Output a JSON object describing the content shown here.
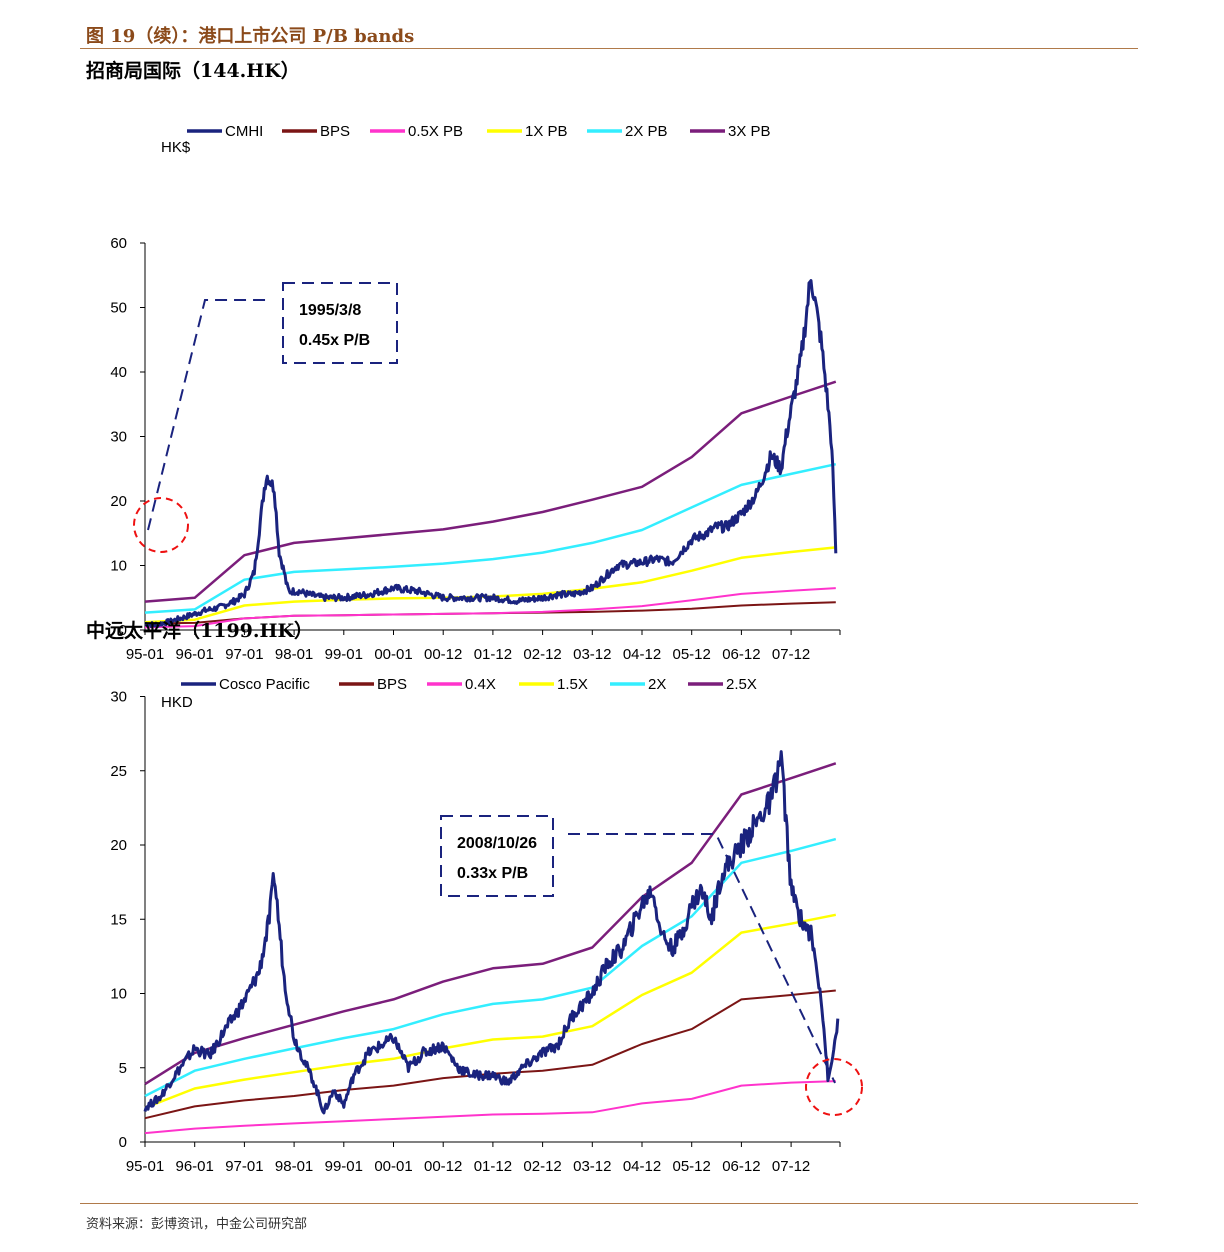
{
  "figure_title": "图 19（续）：港口上市公司 P/B bands",
  "source": "资料来源：彭博资讯，中金公司研究部",
  "chart_data": [
    {
      "type": "line",
      "title": "招商局国际（144.HK）",
      "ylabel": "HK$",
      "ylim": [
        0,
        60
      ],
      "yticks": [
        "0",
        "10",
        "20",
        "30",
        "40",
        "50",
        "60"
      ],
      "categories": [
        "95-01",
        "96-01",
        "97-01",
        "98-01",
        "99-01",
        "00-01",
        "00-12",
        "01-12",
        "02-12",
        "03-12",
        "04-12",
        "05-12",
        "06-12",
        "07-12"
      ],
      "legend_position": "top",
      "annotation": {
        "lines": [
          "1995/3/8",
          "0.45x P/B"
        ]
      },
      "series": [
        {
          "name": "CMHI",
          "color": "#1a237e",
          "width": 3,
          "noise": 1,
          "x": [
            0,
            0.2,
            0.5,
            0.8,
            1,
            1.2,
            1.5,
            1.8,
            2,
            2.2,
            2.4,
            2.45,
            2.6,
            2.7,
            2.8,
            2.85,
            2.9,
            3.0,
            3.1,
            3.3,
            3.6,
            4,
            4.5,
            5,
            5.5,
            6,
            6.5,
            7,
            7.5,
            8,
            8.3,
            8.6,
            9,
            9.5,
            10,
            10.3,
            10.6,
            11,
            11.3,
            11.5,
            11.7,
            12,
            12.3,
            12.6,
            12.8,
            12.9,
            13,
            13.2,
            13.4,
            13.6,
            13.7,
            13.8,
            13.85,
            13.9
          ],
          "y": [
            1,
            0.8,
            1.3,
            2,
            2.5,
            3,
            3.5,
            4.5,
            5.5,
            9,
            22,
            24,
            22,
            12,
            9,
            7,
            6,
            6,
            6,
            5.5,
            5,
            5,
            5.5,
            6.5,
            6,
            5,
            5,
            5,
            4.5,
            5,
            5.5,
            5.5,
            6.5,
            10,
            10.5,
            11,
            10.5,
            14,
            15,
            16,
            16,
            18,
            21,
            27,
            25,
            30,
            34,
            42,
            55,
            45,
            38,
            30,
            23,
            12
          ]
        },
        {
          "name": "BPS",
          "color": "#7b1515",
          "width": 2,
          "noise": 0,
          "x": [
            0,
            1,
            2,
            3,
            4,
            5,
            6,
            7,
            8,
            9,
            10,
            11,
            12,
            13,
            13.9
          ],
          "y": [
            1,
            1.1,
            1.8,
            2.2,
            2.3,
            2.4,
            2.5,
            2.6,
            2.7,
            2.8,
            3.0,
            3.3,
            3.8,
            4.1,
            4.3
          ]
        },
        {
          "name": "0.5X PB",
          "color": "#ff33cc",
          "width": 2,
          "noise": 0,
          "x": [
            0,
            1,
            2,
            3,
            4,
            5,
            6,
            7,
            8,
            9,
            10,
            11,
            12,
            13,
            13.9
          ],
          "y": [
            0.4,
            0.6,
            1.8,
            2.2,
            2.3,
            2.4,
            2.5,
            2.6,
            2.8,
            3.2,
            3.7,
            4.6,
            5.6,
            6.1,
            6.5
          ]
        },
        {
          "name": "1X PB",
          "color": "#ffff00",
          "width": 2.5,
          "noise": 0,
          "x": [
            0,
            1,
            2,
            3,
            4,
            5,
            6,
            7,
            8,
            9,
            10,
            11,
            12,
            13,
            13.9
          ],
          "y": [
            1.2,
            1.6,
            3.8,
            4.4,
            4.7,
            4.9,
            5.0,
            5.2,
            5.6,
            6.4,
            7.4,
            9.2,
            11.2,
            12.1,
            12.8
          ]
        },
        {
          "name": "2X PB",
          "color": "#33eeff",
          "width": 2.5,
          "noise": 0,
          "x": [
            0,
            1,
            2,
            3,
            4,
            5,
            6,
            7,
            8,
            9,
            10,
            11,
            12,
            13,
            13.9
          ],
          "y": [
            2.7,
            3.2,
            7.8,
            9.0,
            9.4,
            9.8,
            10.3,
            11.0,
            12.0,
            13.5,
            15.5,
            19.0,
            22.5,
            24.2,
            25.7
          ]
        },
        {
          "name": "3X PB",
          "color": "#7b1e7b",
          "width": 2.5,
          "noise": 0,
          "x": [
            0,
            1,
            2,
            3,
            4,
            5,
            6,
            7,
            8,
            9,
            10,
            11,
            12,
            13,
            13.9
          ],
          "y": [
            4.4,
            5.0,
            11.6,
            13.5,
            14.2,
            14.9,
            15.6,
            16.8,
            18.3,
            20.2,
            22.2,
            26.8,
            33.6,
            36.2,
            38.5
          ]
        }
      ]
    },
    {
      "type": "line",
      "title": "中远太平洋（1199.HK）",
      "ylabel": "HKD",
      "ylim": [
        0,
        30
      ],
      "yticks": [
        "0",
        "5",
        "10",
        "15",
        "20",
        "25",
        "30"
      ],
      "categories": [
        "95-01",
        "96-01",
        "97-01",
        "98-01",
        "99-01",
        "00-01",
        "00-12",
        "01-12",
        "02-12",
        "03-12",
        "04-12",
        "05-12",
        "06-12",
        "07-12"
      ],
      "legend_position": "top",
      "annotation": {
        "lines": [
          "2008/10/26",
          "0.33x P/B"
        ]
      },
      "series": [
        {
          "name": "Cosco Pacific",
          "color": "#1a237e",
          "width": 3,
          "noise": 1,
          "x": [
            0,
            0.3,
            0.6,
            1,
            1.3,
            1.6,
            2,
            2.3,
            2.5,
            2.6,
            2.8,
            3,
            3.2,
            3.4,
            3.6,
            3.8,
            4,
            4.2,
            4.5,
            5,
            5.3,
            5.6,
            6,
            6.3,
            6.6,
            7,
            7.3,
            7.6,
            8,
            8.3,
            8.6,
            9,
            9.3,
            9.6,
            10,
            10.2,
            10.4,
            10.6,
            10.8,
            11,
            11.2,
            11.4,
            11.6,
            11.8,
            12,
            12.2,
            12.4,
            12.6,
            12.8,
            13,
            13.2,
            13.4,
            13.6,
            13.75,
            13.85,
            13.95
          ],
          "y": [
            2.3,
            3.0,
            4.5,
            6.3,
            5.8,
            7.5,
            9.5,
            11.5,
            15,
            18,
            11,
            7,
            5.5,
            4,
            2,
            3.5,
            2.5,
            4.5,
            6,
            7,
            5,
            6,
            6.5,
            5,
            4.5,
            4.5,
            4,
            5,
            6,
            6.5,
            8.5,
            10,
            12,
            13,
            16,
            17,
            14,
            13,
            14,
            16,
            17,
            15,
            18,
            19,
            20,
            21,
            22,
            23,
            26,
            17,
            15,
            14,
            10,
            4,
            6,
            8.5
          ]
        },
        {
          "name": "BPS",
          "color": "#7b1515",
          "width": 2,
          "noise": 0,
          "x": [
            0,
            1,
            2,
            3,
            4,
            5,
            6,
            7,
            8,
            9,
            10,
            11,
            12,
            13,
            13.9
          ],
          "y": [
            1.6,
            2.4,
            2.8,
            3.1,
            3.5,
            3.8,
            4.3,
            4.6,
            4.8,
            5.2,
            6.6,
            7.6,
            9.6,
            9.9,
            10.2
          ]
        },
        {
          "name": "0.4X",
          "color": "#ff33cc",
          "width": 2,
          "noise": 0,
          "x": [
            0,
            1,
            2,
            3,
            4,
            5,
            6,
            7,
            8,
            9,
            10,
            11,
            12,
            13,
            13.9
          ],
          "y": [
            0.6,
            0.9,
            1.1,
            1.25,
            1.4,
            1.55,
            1.7,
            1.85,
            1.9,
            2.0,
            2.6,
            2.9,
            3.8,
            4.0,
            4.1
          ]
        },
        {
          "name": "1.5X",
          "color": "#ffff00",
          "width": 2.5,
          "noise": 0,
          "x": [
            0,
            1,
            2,
            3,
            4,
            5,
            6,
            7,
            8,
            9,
            10,
            11,
            12,
            13,
            13.9
          ],
          "y": [
            2.3,
            3.6,
            4.2,
            4.7,
            5.2,
            5.6,
            6.3,
            6.9,
            7.1,
            7.8,
            9.9,
            11.4,
            14.1,
            14.7,
            15.3
          ]
        },
        {
          "name": "2X",
          "color": "#33eeff",
          "width": 2.5,
          "noise": 0,
          "x": [
            0,
            1,
            2,
            3,
            4,
            5,
            6,
            7,
            8,
            9,
            10,
            11,
            12,
            13,
            13.9
          ],
          "y": [
            3.1,
            4.8,
            5.6,
            6.3,
            7.0,
            7.6,
            8.6,
            9.3,
            9.6,
            10.4,
            13.2,
            15.2,
            18.8,
            19.6,
            20.4
          ]
        },
        {
          "name": "2.5X",
          "color": "#7b1e7b",
          "width": 2.5,
          "noise": 0,
          "x": [
            0,
            1,
            2,
            3,
            4,
            5,
            6,
            7,
            8,
            9,
            10,
            11,
            12,
            13,
            13.9
          ],
          "y": [
            3.9,
            6.0,
            7.0,
            7.9,
            8.8,
            9.6,
            10.8,
            11.7,
            12.0,
            13.1,
            16.5,
            18.8,
            23.4,
            24.5,
            25.5
          ]
        }
      ]
    }
  ]
}
